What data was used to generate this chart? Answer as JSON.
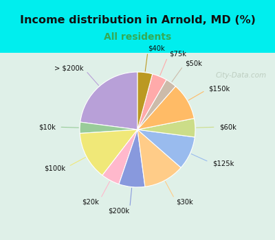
{
  "title": "Income distribution in Arnold, MD (%)",
  "subtitle": "All residents",
  "title_color": "#111111",
  "subtitle_color": "#33aa55",
  "bg_cyan": "#00eeee",
  "bg_chart": "#dff0e8",
  "watermark": "City-Data.com",
  "labels": [
    "> $200k",
    "$10k",
    "$100k",
    "$20k",
    "$200k",
    "$30k",
    "$125k",
    "$60k",
    "$150k",
    "$50k",
    "$75k",
    "$40k"
  ],
  "values": [
    22,
    3,
    13,
    5,
    7,
    11,
    9,
    5,
    10,
    3,
    4,
    4
  ],
  "colors": [
    "#b8a0d8",
    "#99cc99",
    "#f0e878",
    "#ffb8cc",
    "#8899dd",
    "#ffcc88",
    "#99bbee",
    "#ccdd88",
    "#ffbb66",
    "#ccbbaa",
    "#ffaaaa",
    "#bb9922"
  ],
  "startangle": 90,
  "figsize": [
    4.0,
    3.5
  ],
  "dpi": 100
}
